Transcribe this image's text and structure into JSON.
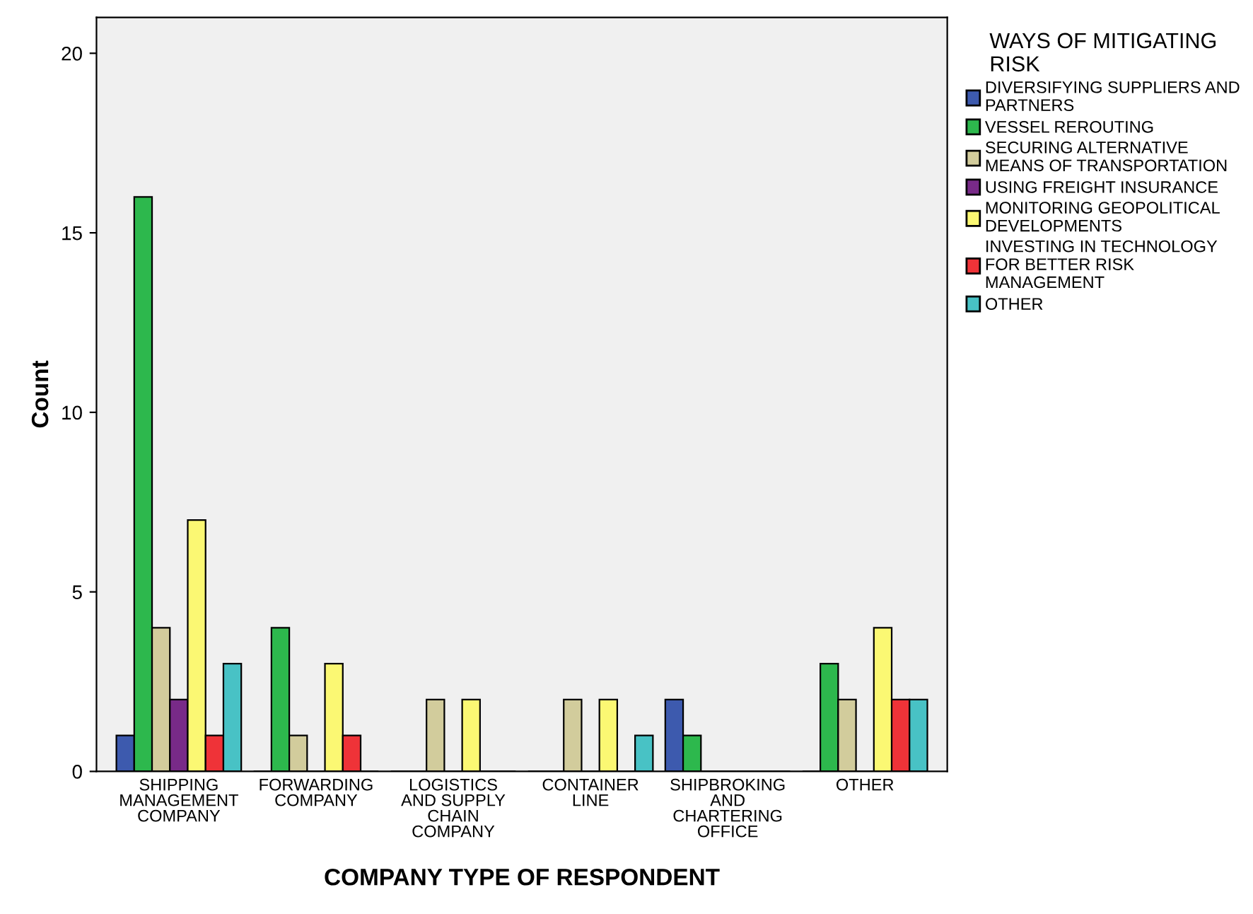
{
  "chart_data": {
    "type": "bar",
    "xlabel": "COMPANY TYPE OF RESPONDENT",
    "ylabel": "Count",
    "legend_title": "WAYS OF MITIGATING\nRISK",
    "categories": [
      "SHIPPING\nMANAGEMENT\nCOMPANY",
      "FORWARDING\nCOMPANY",
      "LOGISTICS\nAND SUPPLY\nCHAIN\nCOMPANY",
      "CONTAINER\nLINE",
      "SHIPBROKING\nAND\nCHARTERING\nOFFICE",
      "OTHER"
    ],
    "series": [
      {
        "name": "DIVERSIFYING SUPPLIERS AND\nPARTNERS",
        "color": "#3d5aae",
        "values": [
          1,
          0,
          0,
          0,
          2,
          0
        ]
      },
      {
        "name": "VESSEL REROUTING",
        "color": "#2db84d",
        "values": [
          16,
          4,
          0,
          0,
          1,
          3
        ]
      },
      {
        "name": "SECURING ALTERNATIVE\nMEANS OF TRANSPORTATION",
        "color": "#d2cc9c",
        "values": [
          4,
          1,
          2,
          2,
          0,
          2
        ]
      },
      {
        "name": "USING FREIGHT INSURANCE",
        "color": "#782a88",
        "values": [
          2,
          0,
          0,
          0,
          0,
          0
        ]
      },
      {
        "name": "MONITORING GEOPOLITICAL\nDEVELOPMENTS",
        "color": "#fbf873",
        "values": [
          7,
          3,
          2,
          2,
          0,
          4
        ]
      },
      {
        "name": "INVESTING IN TECHNOLOGY\nFOR BETTER RISK\nMANAGEMENT",
        "color": "#ef3338",
        "values": [
          1,
          1,
          0,
          0,
          0,
          2
        ]
      },
      {
        "name": "OTHER",
        "color": "#48c2c5",
        "values": [
          3,
          0,
          0,
          1,
          0,
          2
        ]
      }
    ],
    "ylim": [
      0,
      21
    ],
    "yticks": [
      0,
      5,
      10,
      15,
      20
    ],
    "grid": false,
    "legend": "right"
  }
}
